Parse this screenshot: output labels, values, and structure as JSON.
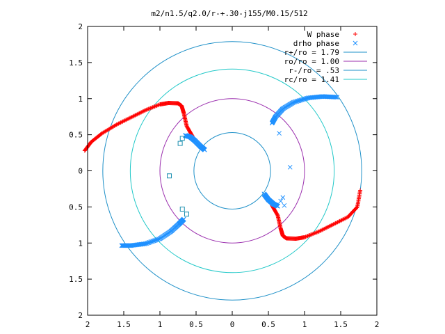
{
  "chart_data": {
    "type": "scatter",
    "title": "m2/n1.5/q2.0/r-+.30-j155/M0.15/512",
    "xlim": [
      -2,
      2
    ],
    "ylim": [
      -2,
      2
    ],
    "xticks": [
      -2,
      -1.5,
      -1,
      -0.5,
      0,
      0.5,
      1,
      1.5,
      2
    ],
    "yticks": [
      -2,
      -1.5,
      -1,
      -0.5,
      0,
      0.5,
      1,
      1.5,
      2
    ],
    "xtick_labels": [
      "2",
      "1.5",
      "1",
      "0.5",
      "0",
      "0.5",
      "1",
      "1.5",
      "2"
    ],
    "ytick_labels": [
      "2",
      "1.5",
      "1",
      "0.5",
      "0",
      "0.5",
      "1",
      "1.5",
      "2"
    ],
    "grid": false,
    "legend_position": "top-right",
    "circles": [
      {
        "name": "r+/ro = 1.79",
        "radius": 1.79,
        "color": "#1e90c8"
      },
      {
        "name": "ro/ro = 1.00",
        "radius": 1.0,
        "color": "#9b2fae"
      },
      {
        "name": "r-/ro = .53",
        "radius": 0.53,
        "color": "#1e90c8"
      },
      {
        "name": "rc/ro = 1.41",
        "radius": 1.41,
        "color": "#20c8c8"
      }
    ],
    "series": [
      {
        "name": "W phase",
        "marker": "plus",
        "color": "#ff0000",
        "segments": [
          [
            [
              -2.04,
              0.28
            ],
            [
              -1.95,
              0.4
            ],
            [
              -1.8,
              0.52
            ],
            [
              -1.6,
              0.64
            ],
            [
              -1.4,
              0.74
            ],
            [
              -1.2,
              0.84
            ],
            [
              -1.0,
              0.92
            ],
            [
              -0.88,
              0.94
            ],
            [
              -0.75,
              0.935
            ],
            [
              -0.7,
              0.9
            ],
            [
              -0.67,
              0.8
            ],
            [
              -0.63,
              0.62
            ],
            [
              -0.55,
              0.48
            ]
          ],
          [
            [
              0.55,
              -0.48
            ],
            [
              0.63,
              -0.62
            ],
            [
              0.67,
              -0.8
            ],
            [
              0.7,
              -0.9
            ],
            [
              0.75,
              -0.935
            ],
            [
              0.88,
              -0.94
            ],
            [
              1.0,
              -0.92
            ],
            [
              1.2,
              -0.84
            ],
            [
              1.4,
              -0.74
            ],
            [
              1.6,
              -0.64
            ],
            [
              1.73,
              -0.5
            ],
            [
              1.77,
              -0.27
            ]
          ]
        ]
      },
      {
        "name": "drho phase",
        "marker": "cross",
        "color": "#1e90ff",
        "segments": [
          [
            [
              -0.65,
              0.49
            ],
            [
              -0.58,
              0.47
            ],
            [
              -0.52,
              0.42
            ],
            [
              -0.44,
              0.34
            ],
            [
              -0.38,
              0.29
            ]
          ],
          [
            [
              0.55,
              0.66
            ],
            [
              0.6,
              0.75
            ],
            [
              0.7,
              0.86
            ],
            [
              0.85,
              0.95
            ],
            [
              1.05,
              1.01
            ],
            [
              1.25,
              1.03
            ],
            [
              1.45,
              1.02
            ]
          ],
          [
            [
              0.44,
              -0.32
            ],
            [
              0.5,
              -0.4
            ],
            [
              0.57,
              -0.46
            ],
            [
              0.63,
              -0.49
            ]
          ],
          [
            [
              -0.67,
              -0.67
            ],
            [
              -0.74,
              -0.74
            ],
            [
              -0.85,
              -0.84
            ],
            [
              -1.0,
              -0.94
            ],
            [
              -1.2,
              -1.01
            ],
            [
              -1.4,
              -1.035
            ],
            [
              -1.53,
              -1.035
            ]
          ]
        ],
        "scatter": [
          [
            0.8,
            0.05
          ],
          [
            0.65,
            0.52
          ],
          [
            0.7,
            -0.37
          ],
          [
            0.72,
            -0.48
          ],
          [
            0.67,
            -0.42
          ]
        ],
        "squares": [
          [
            -0.72,
            0.38
          ],
          [
            -0.69,
            0.45
          ],
          [
            -0.87,
            -0.07
          ],
          [
            -0.69,
            -0.53
          ],
          [
            -0.63,
            -0.6
          ]
        ]
      }
    ]
  }
}
